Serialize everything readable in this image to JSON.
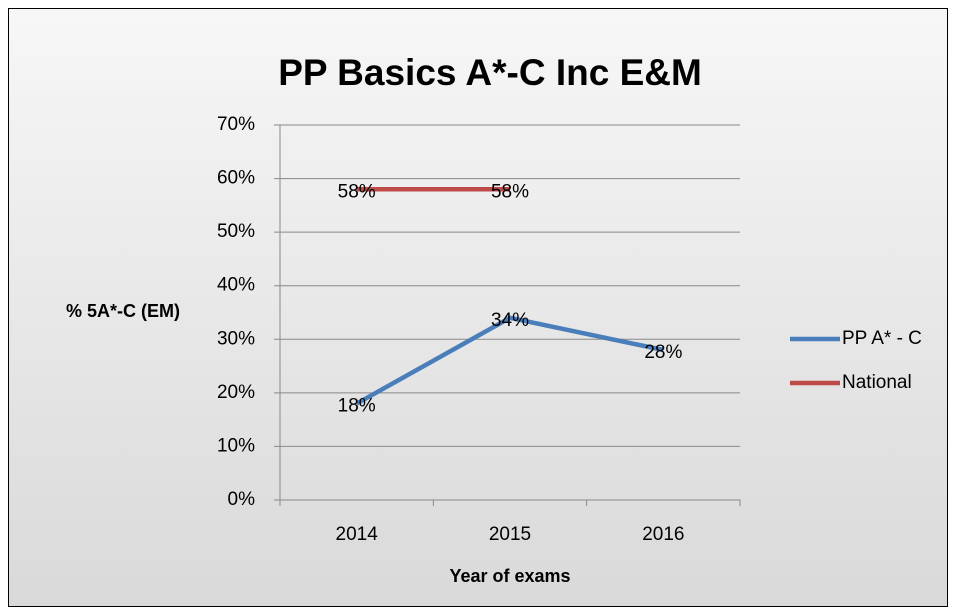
{
  "chart_data": {
    "type": "line",
    "title": "PP Basics A*-C Inc E&M",
    "x_label": "Year of exams",
    "y_label": "% 5A*-C (EM)",
    "categories": [
      "2014",
      "2015",
      "2016"
    ],
    "series": [
      {
        "name": "PP A* - C",
        "color": "#4a7ebb",
        "values": [
          18,
          34,
          28
        ],
        "value_labels": [
          "18%",
          "34%",
          "28%"
        ]
      },
      {
        "name": "National",
        "color": "#be4b48",
        "values": [
          58,
          58,
          null
        ],
        "value_labels": [
          "58%",
          "58%",
          null
        ]
      }
    ],
    "ylim": [
      0,
      70
    ],
    "yticks": [
      {
        "value": 0,
        "label": "0%"
      },
      {
        "value": 10,
        "label": "10%"
      },
      {
        "value": 20,
        "label": "20%"
      },
      {
        "value": 30,
        "label": "30%"
      },
      {
        "value": 40,
        "label": "40%"
      },
      {
        "value": 50,
        "label": "50%"
      },
      {
        "value": 60,
        "label": "60%"
      },
      {
        "value": 70,
        "label": "70%"
      }
    ],
    "grid": true,
    "legend": "right"
  }
}
